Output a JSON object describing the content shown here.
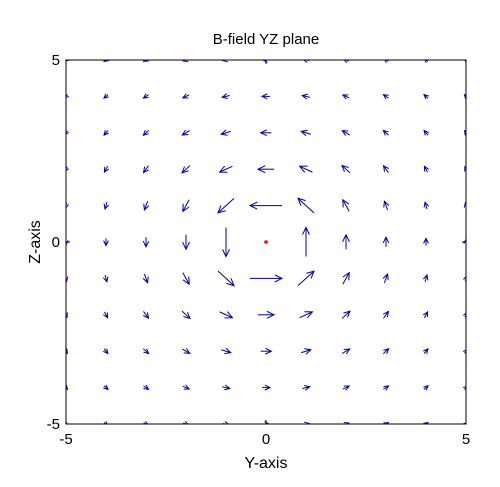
{
  "chart_data": {
    "type": "quiver",
    "title": "B-field YZ plane",
    "xlabel": "Y-axis",
    "ylabel": "Z-axis",
    "xlim": [
      -5,
      5
    ],
    "ylim": [
      -5,
      5
    ],
    "xticks": [
      "-5",
      "0",
      "5"
    ],
    "yticks": [
      "-5",
      "0",
      "5"
    ],
    "grid": false,
    "arrow_color": "#0000aa",
    "source_color": "#ff0000",
    "source_point": {
      "y": 0,
      "z": 0
    },
    "field_grid": {
      "start": -5,
      "step": 1,
      "count": 11
    },
    "field_model": "circulating field around a line current at origin, magnitude ~ 1/r (clipped near origin), direction counter-clockwise",
    "field_strength": 1.0,
    "max_length": 2.6
  }
}
